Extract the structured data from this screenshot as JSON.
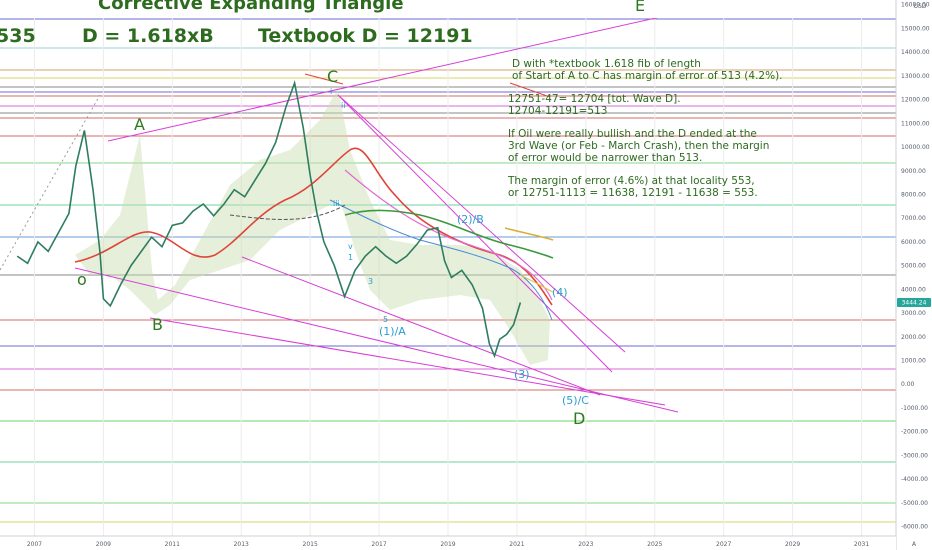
{
  "header": {
    "title": "Corrective Expanding Triangle",
    "left_fragment": "535",
    "formula": "D = 1.618xB",
    "textbook": "Textbook D = 12191"
  },
  "notes": {
    "line1": "D with *textbook 1.618 fib of length",
    "line2": "of Start of A to C has margin of error of 513 (4.2%).",
    "line3": "12751-47= 12704 [tot. Wave D].",
    "line4": "12704-12191=513",
    "line5": "If Oil were really bullish and the D ended at the",
    "line6": "3rd Wave (or Feb - March Crash), then the margin",
    "line7": "of error would be narrower than 513.",
    "line8": "The margin of error (4.6%) at that locality 553,",
    "line9": "or 12751-1113 = 11638, 12191 - 11638 = 553."
  },
  "wave_labels": {
    "o": "o",
    "A": "A",
    "B": "B",
    "C": "C",
    "D": "D",
    "E": "E",
    "sub_1A": "(1)/A",
    "sub_2B": "(2)/B",
    "sub_3": "(3)",
    "sub_4": "(4)",
    "sub_5C": "(5)/C",
    "small_i": "i",
    "small_ii": "ii",
    "small_iii": "iii",
    "small_v": "v",
    "small_1": "1",
    "small_3": "3",
    "small_5": "5"
  },
  "price_axis": {
    "currency": "USD",
    "current_price": "3444.24"
  },
  "colors": {
    "header_green": "#2d6b1f",
    "wave_green": "#2d7a1f",
    "wave_cyan": "#2a9fd0",
    "trendline_magenta": "#d63fd6",
    "ma_red": "#e0443a",
    "price_tag_bg": "#26a69a"
  },
  "chart_data": {
    "type": "line",
    "y_scale": "linear",
    "ylim": [
      -6400,
      16200
    ],
    "xlim": [
      2006.0,
      2032.0
    ],
    "y_ticks": [
      16000,
      15000,
      14000,
      13000,
      12000,
      11000,
      10000,
      9000,
      8000,
      7000,
      6000,
      5000,
      4000,
      3000,
      2000,
      1000,
      0,
      -1000,
      -2000,
      -3000,
      -4000,
      -5000,
      -6000
    ],
    "y_tick_labels": [
      "16000.00",
      "15000.00",
      "14000.00",
      "13000.00",
      "12000.00",
      "11000.00",
      "10000.00",
      "9000.00",
      "8000.00",
      "7000.00",
      "6000.00",
      "5000.00",
      "4000.00",
      "3000.00",
      "2000.00",
      "1000.00",
      "0.00",
      "-1000.00",
      "-2000.00",
      "-3000.00",
      "-4000.00",
      "-5000.00",
      "-6000.00"
    ],
    "x_ticks": [
      2007,
      2009,
      2011,
      2013,
      2015,
      2017,
      2019,
      2021,
      2023,
      2025,
      2027,
      2029,
      2031
    ],
    "x_tick_labels": [
      "2007",
      "2009",
      "2011",
      "2013",
      "2015",
      "2017",
      "2019",
      "2021",
      "2023",
      "2025",
      "2027",
      "2029",
      "2031"
    ],
    "grid": true,
    "series": [
      {
        "x": [
          2006.5,
          2006.8,
          2007.1,
          2007.4,
          2007.7,
          2008.0,
          2008.2,
          2008.45,
          2008.7,
          2008.9,
          2009.0,
          2009.2,
          2009.5,
          2009.8,
          2010.1,
          2010.4,
          2010.7,
          2011.0,
          2011.3,
          2011.6,
          2011.9,
          2012.2,
          2012.5,
          2012.8,
          2013.1,
          2013.4,
          2013.7,
          2014.0,
          2014.3,
          2014.55,
          2014.8,
          2015.0,
          2015.2,
          2015.4,
          2015.7,
          2016.0,
          2016.3,
          2016.6,
          2016.9,
          2017.2,
          2017.5,
          2017.8,
          2018.1,
          2018.4,
          2018.7,
          2018.9,
          2019.1,
          2019.4,
          2019.7,
          2020.0,
          2020.2,
          2020.35,
          2020.5,
          2020.7,
          2020.9,
          2021.1
        ],
        "y": [
          5400,
          5100,
          6000,
          5600,
          6400,
          7200,
          9200,
          10700,
          8200,
          5600,
          3600,
          3300,
          4200,
          5000,
          5600,
          6200,
          5800,
          6700,
          6800,
          7300,
          7600,
          7100,
          7600,
          8200,
          7900,
          8600,
          9300,
          10200,
          11700,
          12700,
          10800,
          8800,
          7200,
          6000,
          5000,
          3700,
          4800,
          5400,
          5800,
          5400,
          5100,
          5400,
          5900,
          6500,
          6600,
          5200,
          4500,
          4800,
          4200,
          3200,
          1700,
          1200,
          1900,
          2100,
          2500,
          3444
        ]
      }
    ]
  }
}
